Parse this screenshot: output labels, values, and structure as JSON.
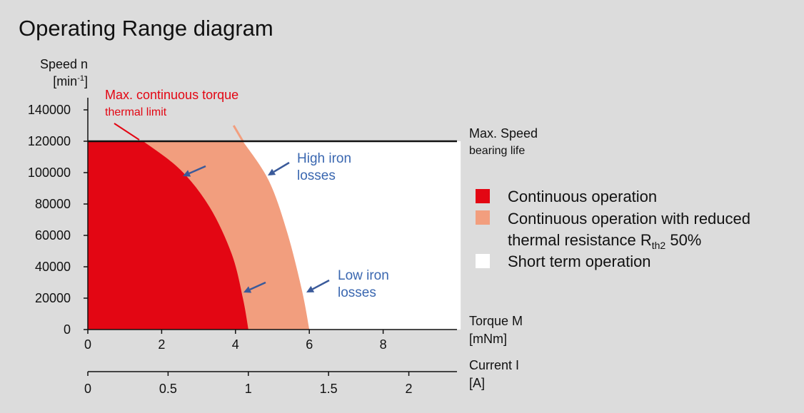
{
  "chart_data": {
    "type": "area",
    "title": "Operating Range diagram",
    "y_axis": {
      "label": "Speed n",
      "unit_base": "[min",
      "unit_sup": "-1",
      "unit_end": "]",
      "range": [
        0,
        140000
      ],
      "ticks": [
        0,
        20000,
        40000,
        60000,
        80000,
        100000,
        120000,
        140000
      ],
      "tick_labels": [
        "0",
        "20000",
        "40000",
        "60000",
        "80000",
        "100000",
        "120000",
        "140000"
      ]
    },
    "x_axis": {
      "label": "Torque M",
      "unit": "[mNm]",
      "range": [
        0,
        10
      ],
      "ticks": [
        0,
        2,
        4,
        6,
        8
      ],
      "tick_labels": [
        "0",
        "2",
        "4",
        "6",
        "8"
      ]
    },
    "x2_axis": {
      "label": "Current I",
      "unit": "[A]",
      "ticks": [
        0,
        0.5,
        1,
        1.5,
        2
      ],
      "tick_labels": [
        "0",
        "0.5",
        "1",
        "1.5",
        "2"
      ]
    },
    "max_speed": {
      "value": 120000,
      "label": "Max. Speed",
      "sublabel": "bearing life"
    },
    "plot_right_torque": 10.1,
    "regions": [
      {
        "name": "Continuous operation",
        "color": "#e30613",
        "boundary": [
          {
            "torque": 1.5,
            "speed": 120000
          },
          {
            "torque": 2.5,
            "speed": 102000
          },
          {
            "torque": 3.3,
            "speed": 78000
          },
          {
            "torque": 3.9,
            "speed": 48000
          },
          {
            "torque": 4.2,
            "speed": 20000
          },
          {
            "torque": 4.35,
            "speed": 0
          }
        ]
      },
      {
        "name": "Continuous operation with reduced thermal resistance Rth2 50%",
        "color": "#f29e7e",
        "boundary": [
          {
            "torque": 4.2,
            "speed": 120000
          },
          {
            "torque": 4.9,
            "speed": 95000
          },
          {
            "torque": 5.4,
            "speed": 62000
          },
          {
            "torque": 5.8,
            "speed": 25000
          },
          {
            "torque": 6.0,
            "speed": 0
          }
        ],
        "extension": {
          "torque": 3.95,
          "speed": 130000
        }
      },
      {
        "name": "Short term operation",
        "color": "#ffffff"
      }
    ],
    "annotations": {
      "thermal_limit": {
        "line1": "Max. continuous torque",
        "line2": "thermal limit",
        "color": "#e30613"
      },
      "high_iron": {
        "line1": "High iron",
        "line2": "losses",
        "color": "#3a67b0"
      },
      "low_iron": {
        "line1": "Low iron",
        "line2": "losses",
        "color": "#3a67b0"
      }
    },
    "legend": {
      "position": "right",
      "items": [
        {
          "color": "#e30613",
          "lines": [
            "Continuous operation"
          ]
        },
        {
          "color": "#f29e7e",
          "lines": [
            "Continuous operation with reduced",
            "thermal resistance R"
          ],
          "sub": "th2",
          "tail": " 50%"
        },
        {
          "color": "#ffffff",
          "lines": [
            "Short term operation"
          ]
        }
      ]
    }
  }
}
